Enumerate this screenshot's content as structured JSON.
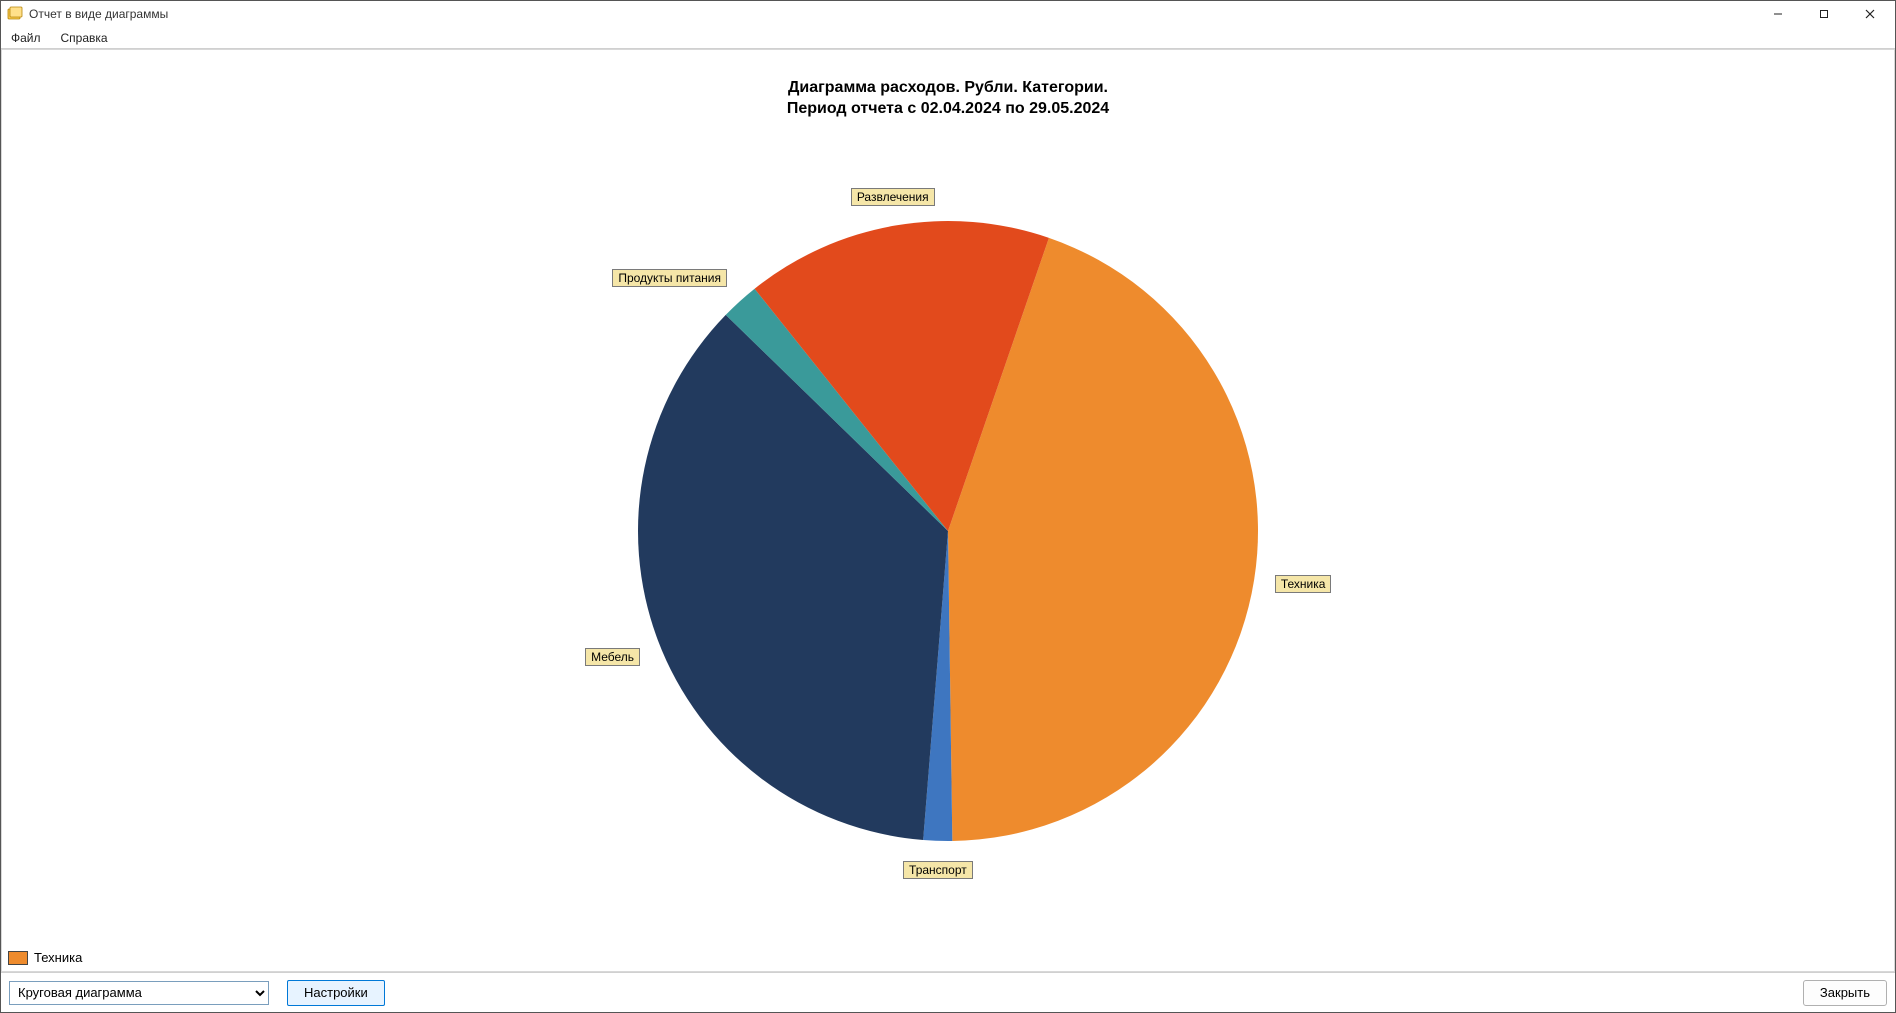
{
  "window": {
    "title": "Отчет в виде диаграммы"
  },
  "menu": {
    "file": "Файл",
    "help": "Справка"
  },
  "chart": {
    "type": "pie",
    "title_line1": "Диаграмма расходов. Рубли. Категории.",
    "title_line2": "Период отчета с 02.04.2024 по 29.05.2024",
    "title_fontsize": 16,
    "background_color": "#ffffff",
    "radius": 310,
    "slices": [
      {
        "label": "Техника",
        "value": 44.5,
        "color": "#ee8b2d"
      },
      {
        "label": "Транспорт",
        "value": 1.5,
        "color": "#3e76c0"
      },
      {
        "label": "Мебель",
        "value": 36.0,
        "color": "#223a5e"
      },
      {
        "label": "Продукты питания",
        "value": 2.0,
        "color": "#3a9a9a"
      },
      {
        "label": "Развлечения",
        "value": 16.0,
        "color": "#e24a1c"
      }
    ],
    "label_bg": "#f5e6a8",
    "label_border": "#7a7a7a",
    "label_fontsize": 12,
    "start_angle_deg": -71
  },
  "legend": {
    "selected_index": 0
  },
  "bottombar": {
    "chart_type_selected": "Круговая диаграмма",
    "settings_label": "Настройки",
    "close_label": "Закрыть"
  }
}
